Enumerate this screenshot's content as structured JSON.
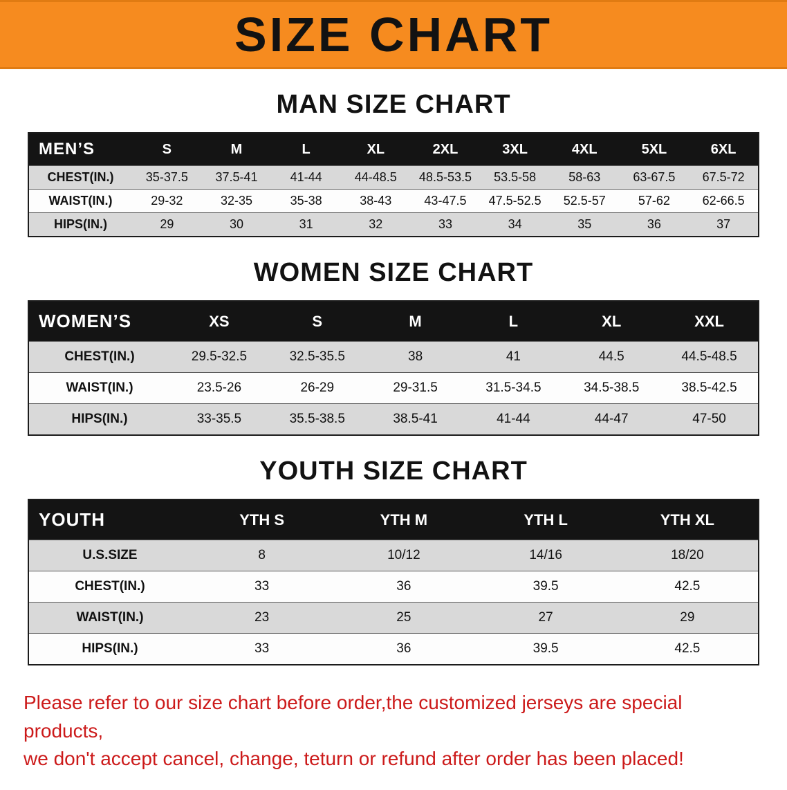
{
  "banner": {
    "title": "SIZE CHART"
  },
  "colors": {
    "banner_bg": "#f68b1f",
    "table_header_bg": "#141414",
    "row_shade": "#d9d9d9",
    "disclaimer_text": "#cc1a1a"
  },
  "sections": [
    {
      "heading": "MAN SIZE CHART",
      "table": {
        "header": [
          "MEN’S",
          "S",
          "M",
          "L",
          "XL",
          "2XL",
          "3XL",
          "4XL",
          "5XL",
          "6XL"
        ],
        "rows": [
          {
            "label": "CHEST(IN.)",
            "values": [
              "35-37.5",
              "37.5-41",
              "41-44",
              "44-48.5",
              "48.5-53.5",
              "53.5-58",
              "58-63",
              "63-67.5",
              "67.5-72"
            ]
          },
          {
            "label": "WAIST(IN.)",
            "values": [
              "29-32",
              "32-35",
              "35-38",
              "38-43",
              "43-47.5",
              "47.5-52.5",
              "52.5-57",
              "57-62",
              "62-66.5"
            ]
          },
          {
            "label": "HIPS(IN.)",
            "values": [
              "29",
              "30",
              "31",
              "32",
              "33",
              "34",
              "35",
              "36",
              "37"
            ]
          }
        ]
      }
    },
    {
      "heading": "WOMEN SIZE CHART",
      "table": {
        "header": [
          "WOMEN’S",
          "XS",
          "S",
          "M",
          "L",
          "XL",
          "XXL"
        ],
        "rows": [
          {
            "label": "CHEST(IN.)",
            "values": [
              "29.5-32.5",
              "32.5-35.5",
              "38",
              "41",
              "44.5",
              "44.5-48.5"
            ]
          },
          {
            "label": "WAIST(IN.)",
            "values": [
              "23.5-26",
              "26-29",
              "29-31.5",
              "31.5-34.5",
              "34.5-38.5",
              "38.5-42.5"
            ]
          },
          {
            "label": "HIPS(IN.)",
            "values": [
              "33-35.5",
              "35.5-38.5",
              "38.5-41",
              "41-44",
              "44-47",
              "47-50"
            ]
          }
        ]
      }
    },
    {
      "heading": "YOUTH SIZE CHART",
      "table": {
        "header": [
          "YOUTH",
          "YTH S",
          "YTH M",
          "YTH L",
          "YTH XL"
        ],
        "rows": [
          {
            "label": "U.S.SIZE",
            "values": [
              "8",
              "10/12",
              "14/16",
              "18/20"
            ]
          },
          {
            "label": "CHEST(IN.)",
            "values": [
              "33",
              "36",
              "39.5",
              "42.5"
            ]
          },
          {
            "label": "WAIST(IN.)",
            "values": [
              "23",
              "25",
              "27",
              "29"
            ]
          },
          {
            "label": "HIPS(IN.)",
            "values": [
              "33",
              "36",
              "39.5",
              "42.5"
            ]
          }
        ]
      }
    }
  ],
  "disclaimer": {
    "line1": "Please refer to our size chart before order,the customized jerseys are special products,",
    "line2": "we don't accept cancel, change, teturn or refund after order has been placed!"
  }
}
